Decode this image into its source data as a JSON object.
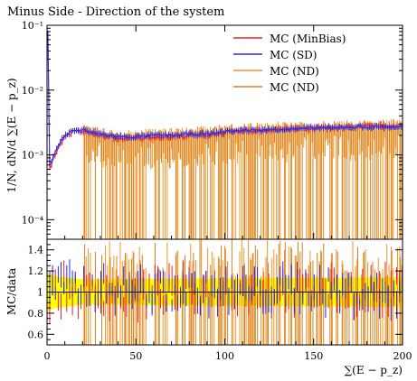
{
  "chart_data": {
    "type": "line",
    "title": "Minus Side - Direction of the system",
    "xlabel": "∑(E − p_z)",
    "ylabel": "1/N, dN/d ∑(E − p_z)",
    "ratio_ylabel": "MC/data",
    "xlim": [
      0,
      200
    ],
    "ylim": [
      5e-05,
      0.1
    ],
    "yscale": "log",
    "ratio_ylim": [
      0.5,
      1.5
    ],
    "x_ticks": [
      0,
      50,
      100,
      150,
      200
    ],
    "y_ticks": [
      {
        "v": 0.1,
        "label": "10⁻¹"
      },
      {
        "v": 0.01,
        "label": "10⁻²"
      },
      {
        "v": 0.001,
        "label": "10⁻³"
      },
      {
        "v": 0.0001,
        "label": "10⁻⁴"
      }
    ],
    "ratio_ticks": [
      0.6,
      0.8,
      1,
      1.2,
      1.4
    ],
    "legend_position": "top-right",
    "series": [
      {
        "name": "MC (MinBias)",
        "color": "#e8202a",
        "points": [
          [
            0.5,
            0.06
          ],
          [
            1.5,
            0.0006
          ],
          [
            3,
            0.0008
          ],
          [
            5,
            0.0011
          ],
          [
            8,
            0.0016
          ],
          [
            11,
            0.002
          ],
          [
            15,
            0.0023
          ],
          [
            20,
            0.0023
          ],
          [
            30,
            0.002
          ],
          [
            40,
            0.0018
          ],
          [
            50,
            0.0018
          ],
          [
            60,
            0.0019
          ],
          [
            70,
            0.0019
          ],
          [
            80,
            0.002
          ],
          [
            90,
            0.002
          ],
          [
            100,
            0.0022
          ],
          [
            110,
            0.0023
          ],
          [
            120,
            0.0024
          ],
          [
            130,
            0.0025
          ],
          [
            140,
            0.0025
          ],
          [
            150,
            0.0026
          ],
          [
            160,
            0.0026
          ],
          [
            170,
            0.0027
          ],
          [
            180,
            0.0028
          ],
          [
            190,
            0.0028
          ],
          [
            200,
            0.0028
          ]
        ]
      },
      {
        "name": "MC (SD)",
        "color": "#2a2ae6",
        "points": [
          [
            0.5,
            0.08
          ],
          [
            1.5,
            0.0007
          ],
          [
            3,
            0.0009
          ],
          [
            5,
            0.0012
          ],
          [
            8,
            0.0017
          ],
          [
            11,
            0.0021
          ],
          [
            15,
            0.0024
          ],
          [
            20,
            0.0024
          ],
          [
            30,
            0.0021
          ],
          [
            40,
            0.0019
          ],
          [
            50,
            0.0019
          ],
          [
            60,
            0.002
          ],
          [
            70,
            0.002
          ],
          [
            80,
            0.0021
          ],
          [
            90,
            0.0021
          ],
          [
            100,
            0.0023
          ],
          [
            110,
            0.0024
          ],
          [
            120,
            0.0024
          ],
          [
            130,
            0.0025
          ],
          [
            140,
            0.0025
          ],
          [
            150,
            0.0026
          ],
          [
            160,
            0.0026
          ],
          [
            170,
            0.0027
          ],
          [
            180,
            0.0027
          ],
          [
            190,
            0.0027
          ],
          [
            200,
            0.0027
          ]
        ]
      },
      {
        "name": "MC (ND)",
        "color": "#f0962a",
        "points": [
          [
            20,
            0.0022
          ],
          [
            40,
            0.0018
          ],
          [
            60,
            0.0019
          ],
          [
            80,
            0.002
          ],
          [
            100,
            0.0022
          ],
          [
            120,
            0.0024
          ],
          [
            140,
            0.0024
          ],
          [
            160,
            0.0025
          ],
          [
            180,
            0.0026
          ],
          [
            200,
            0.0027
          ]
        ]
      },
      {
        "name": "MC (ND)",
        "color": "#d9801a",
        "points": [
          [
            20,
            0.0022
          ],
          [
            40,
            0.0018
          ],
          [
            60,
            0.0019
          ],
          [
            80,
            0.002
          ],
          [
            100,
            0.0022
          ],
          [
            120,
            0.0024
          ],
          [
            140,
            0.0024
          ],
          [
            160,
            0.0025
          ],
          [
            180,
            0.0026
          ],
          [
            200,
            0.0027
          ]
        ]
      }
    ],
    "ratio_band": {
      "color": "#ffff00",
      "points": [
        [
          0,
          0.82,
          1.18
        ],
        [
          5,
          0.85,
          1.15
        ],
        [
          20,
          0.88,
          1.12
        ],
        [
          100,
          0.87,
          1.13
        ],
        [
          200,
          0.86,
          1.14
        ]
      ]
    },
    "ratio_series": [
      {
        "name": "MC (MinBias)",
        "color": "#e8202a",
        "points": [
          [
            10,
            1.0
          ],
          [
            50,
            0.98
          ],
          [
            100,
            1.02
          ],
          [
            150,
            1.0
          ],
          [
            200,
            1.01
          ]
        ]
      },
      {
        "name": "MC (SD)",
        "color": "#2a2ae6",
        "points": [
          [
            10,
            1.05
          ],
          [
            50,
            1.02
          ],
          [
            100,
            1.0
          ],
          [
            150,
            1.03
          ],
          [
            200,
            0.97
          ]
        ]
      }
    ]
  }
}
